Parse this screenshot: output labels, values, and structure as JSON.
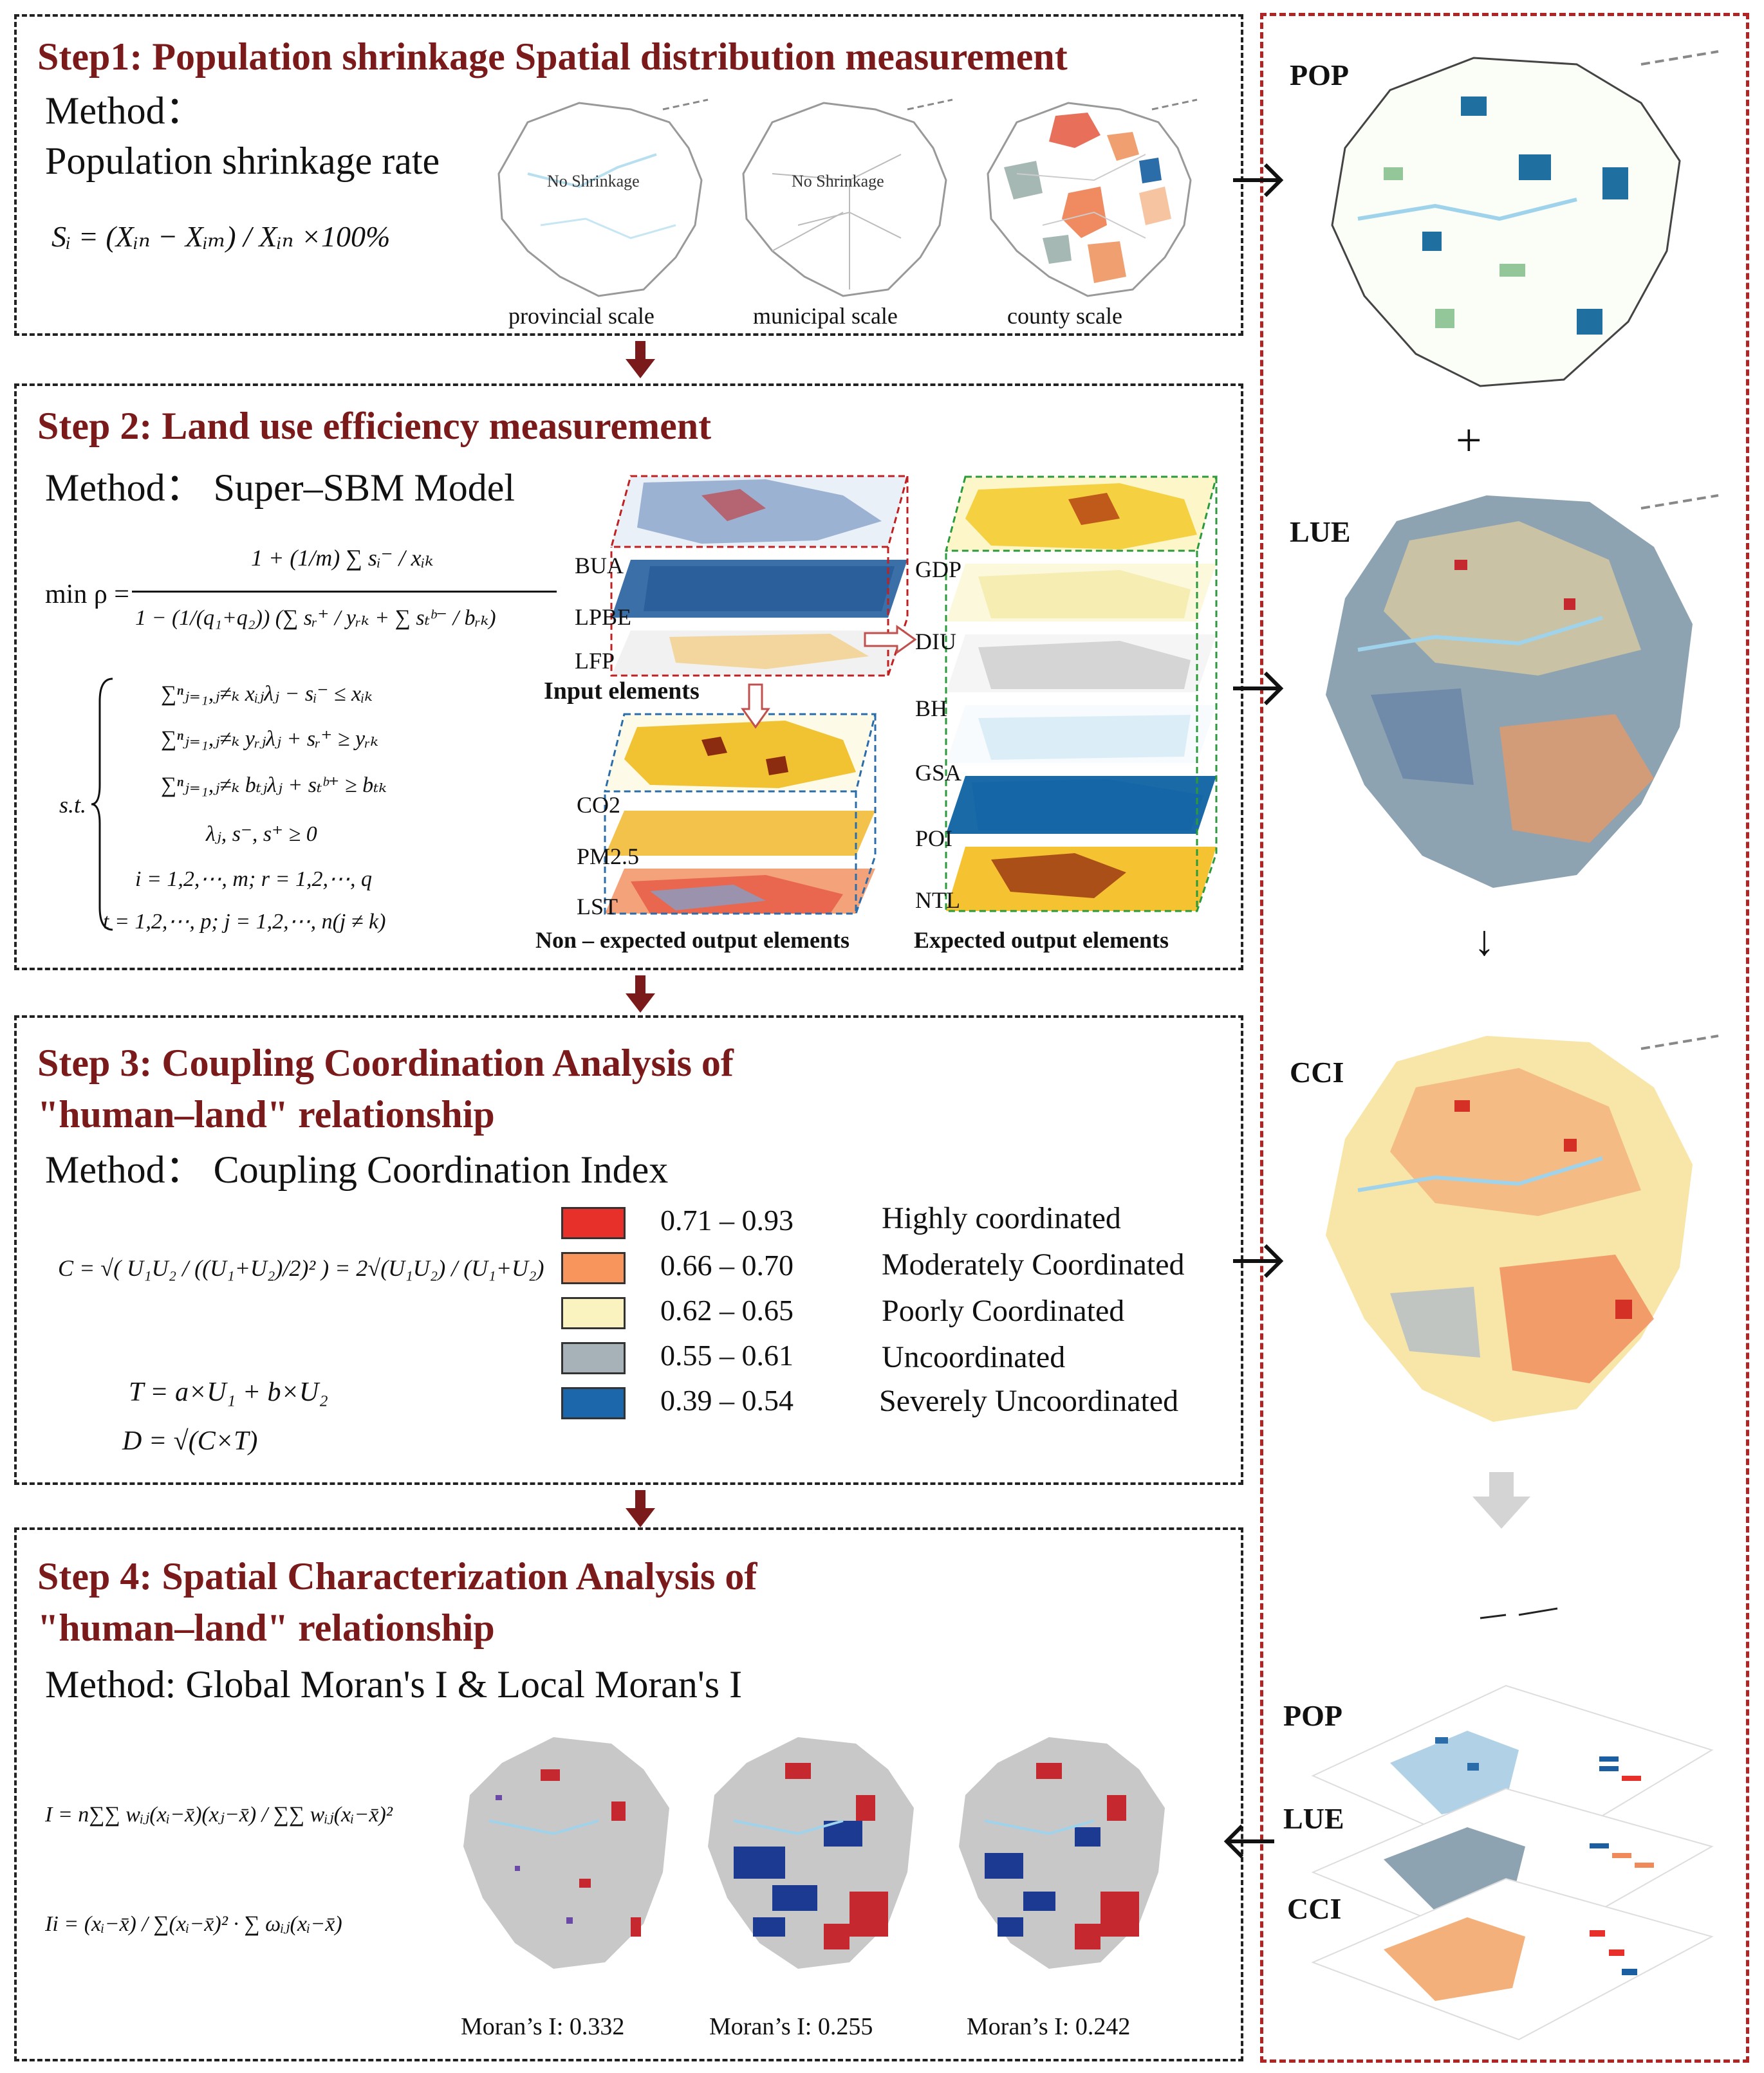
{
  "step1": {
    "title": "Step1:  Population shrinkage Spatial distribution measurement",
    "method_label": "Method：",
    "method_name": "Population shrinkage rate",
    "formula": "Sᵢ = (Xᵢₙ − Xᵢₘ) / Xᵢₙ ×100%",
    "no_shrinkage": "No Shrinkage",
    "scales": [
      "provincial scale",
      "municipal scale",
      "county scale"
    ]
  },
  "step2": {
    "title": "Step 2: Land use efficiency measurement",
    "method": "Method： Super–SBM Model",
    "formula_min": "min ρ =",
    "formula_num": "1 + (1/m) ∑ sᵢ⁻ / xᵢₖ",
    "formula_den": "1 − (1/(q₁+q₂)) (∑ sᵣ⁺ / yᵣₖ + ∑ sₜᵇ⁻ / bᵣₖ)",
    "st_label": "s.t.",
    "constraints": [
      "∑ⁿⱼ₌₁,ⱼ≠ₖ xᵢⱼλⱼ − sᵢ⁻ ≤ xᵢₖ",
      "∑ⁿⱼ₌₁,ⱼ≠ₖ yᵣⱼλⱼ + sᵣ⁺ ≥ yᵣₖ",
      "∑ⁿⱼ₌₁,ⱼ≠ₖ bₜⱼλⱼ + sₜᵇ⁺ ≥ bₜₖ",
      "λⱼ,  s⁻,  s⁺ ≥ 0",
      "i = 1,2,⋯,  m; r = 1,2,⋯,  q",
      "t = 1,2,⋯,  p; j = 1,2,⋯,  n(j ≠ k)"
    ],
    "input_layers": [
      "BUA",
      "LPBE",
      "LFP"
    ],
    "input_caption": "Input elements",
    "nonexpected_layers": [
      "CO2",
      "PM2.5",
      "LST"
    ],
    "nonexpected_caption": "Non – expected output elements",
    "expected_layers": [
      "GDP",
      "DIU",
      "BH",
      "GSA",
      "POI",
      "NTL"
    ],
    "expected_caption": "Expected output elements"
  },
  "step3": {
    "title_line1": "Step 3: Coupling Coordination Analysis of",
    "title_line2": "\"human–land\" relationship",
    "method": "Method： Coupling Coordination Index",
    "formula_c": "C = √( U₁U₂ / ((U₁+U₂)/2)² ) = 2√(U₁U₂) / (U₁+U₂)",
    "formula_t": "T = a×U₁ + b×U₂",
    "formula_d": "D = √(C×T)",
    "legend": [
      {
        "range": "0.71 – 0.93",
        "label": "Highly coordinated",
        "color": "#e8302a"
      },
      {
        "range": "0.66 – 0.70",
        "label": "Moderately Coordinated",
        "color": "#f8955c"
      },
      {
        "range": "0.62 – 0.65",
        "label": "Poorly Coordinated",
        "color": "#fbf3bf"
      },
      {
        "range": "0.55 – 0.61",
        "label": "Uncoordinated",
        "color": "#a6b1b8"
      },
      {
        "range": "0.39 – 0.54",
        "label": "Severely Uncoordinated",
        "color": "#1c67ab"
      }
    ]
  },
  "step4": {
    "title_line1": "Step 4: Spatial Characterization Analysis of",
    "title_line2": "\"human–land\" relationship",
    "method": "Method:  Global Moran's I  & Local Moran's I",
    "formula_i": "I = n∑∑ wᵢⱼ(xᵢ−x̄)(xⱼ−x̄) / ∑∑ wᵢⱼ(xᵢ−x̄)²",
    "formula_ii": "Ii = (xᵢ−x̄) / ∑(xᵢ−x̄)² · ∑ ωᵢⱼ(xᵢ−x̄)",
    "morans": [
      "Moran’s I: 0.332",
      "Moran’s I: 0.255",
      "Moran’s I: 0.242"
    ]
  },
  "side": {
    "pop": "POP",
    "plus": "+",
    "lue": "LUE",
    "down": "↓",
    "cci": "CCI",
    "stack_labels": [
      "POP",
      "LUE",
      "CCI"
    ]
  },
  "colors": {
    "title": "#7a1a1a",
    "arrow": "#7a1a1a",
    "red_border": "#b02424"
  }
}
